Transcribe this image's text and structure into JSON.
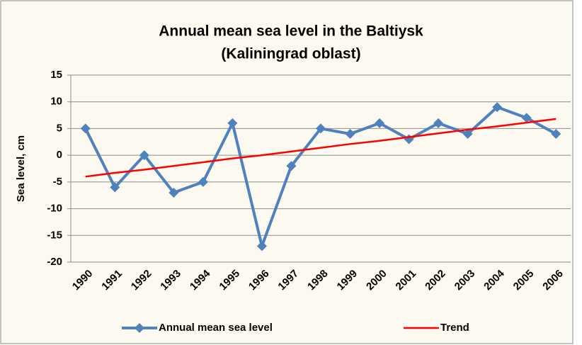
{
  "chart_data": {
    "type": "line",
    "title": [
      "Annual mean sea level in the Baltiysk",
      "(Kaliningrad oblast)"
    ],
    "y_label": "Sea level, cm",
    "categories": [
      "1990",
      "1991",
      "1992",
      "1993",
      "1994",
      "1995",
      "1996",
      "1997",
      "1998",
      "1999",
      "2000",
      "2001",
      "2002",
      "2003",
      "2004",
      "2005",
      "2006"
    ],
    "series": [
      {
        "name": "Annual mean sea level",
        "color": "#4f81bd",
        "marker": "diamond",
        "values": [
          5,
          -6,
          0,
          -7,
          -5,
          6,
          -17,
          -2,
          5,
          4,
          6,
          3,
          6,
          4,
          9,
          7,
          4
        ]
      },
      {
        "name": "Trend",
        "color": "#ff0000",
        "values": [
          -4.0,
          -3.3,
          -2.7,
          -2.0,
          -1.3,
          -0.6,
          0.0,
          0.7,
          1.4,
          2.1,
          2.7,
          3.4,
          4.1,
          4.8,
          5.4,
          6.1,
          6.8
        ]
      }
    ],
    "ylim": [
      -20,
      15
    ],
    "yticks": [
      15,
      10,
      5,
      0,
      -5,
      -10,
      -15,
      -20
    ],
    "grid": true,
    "legend": "bottom"
  }
}
